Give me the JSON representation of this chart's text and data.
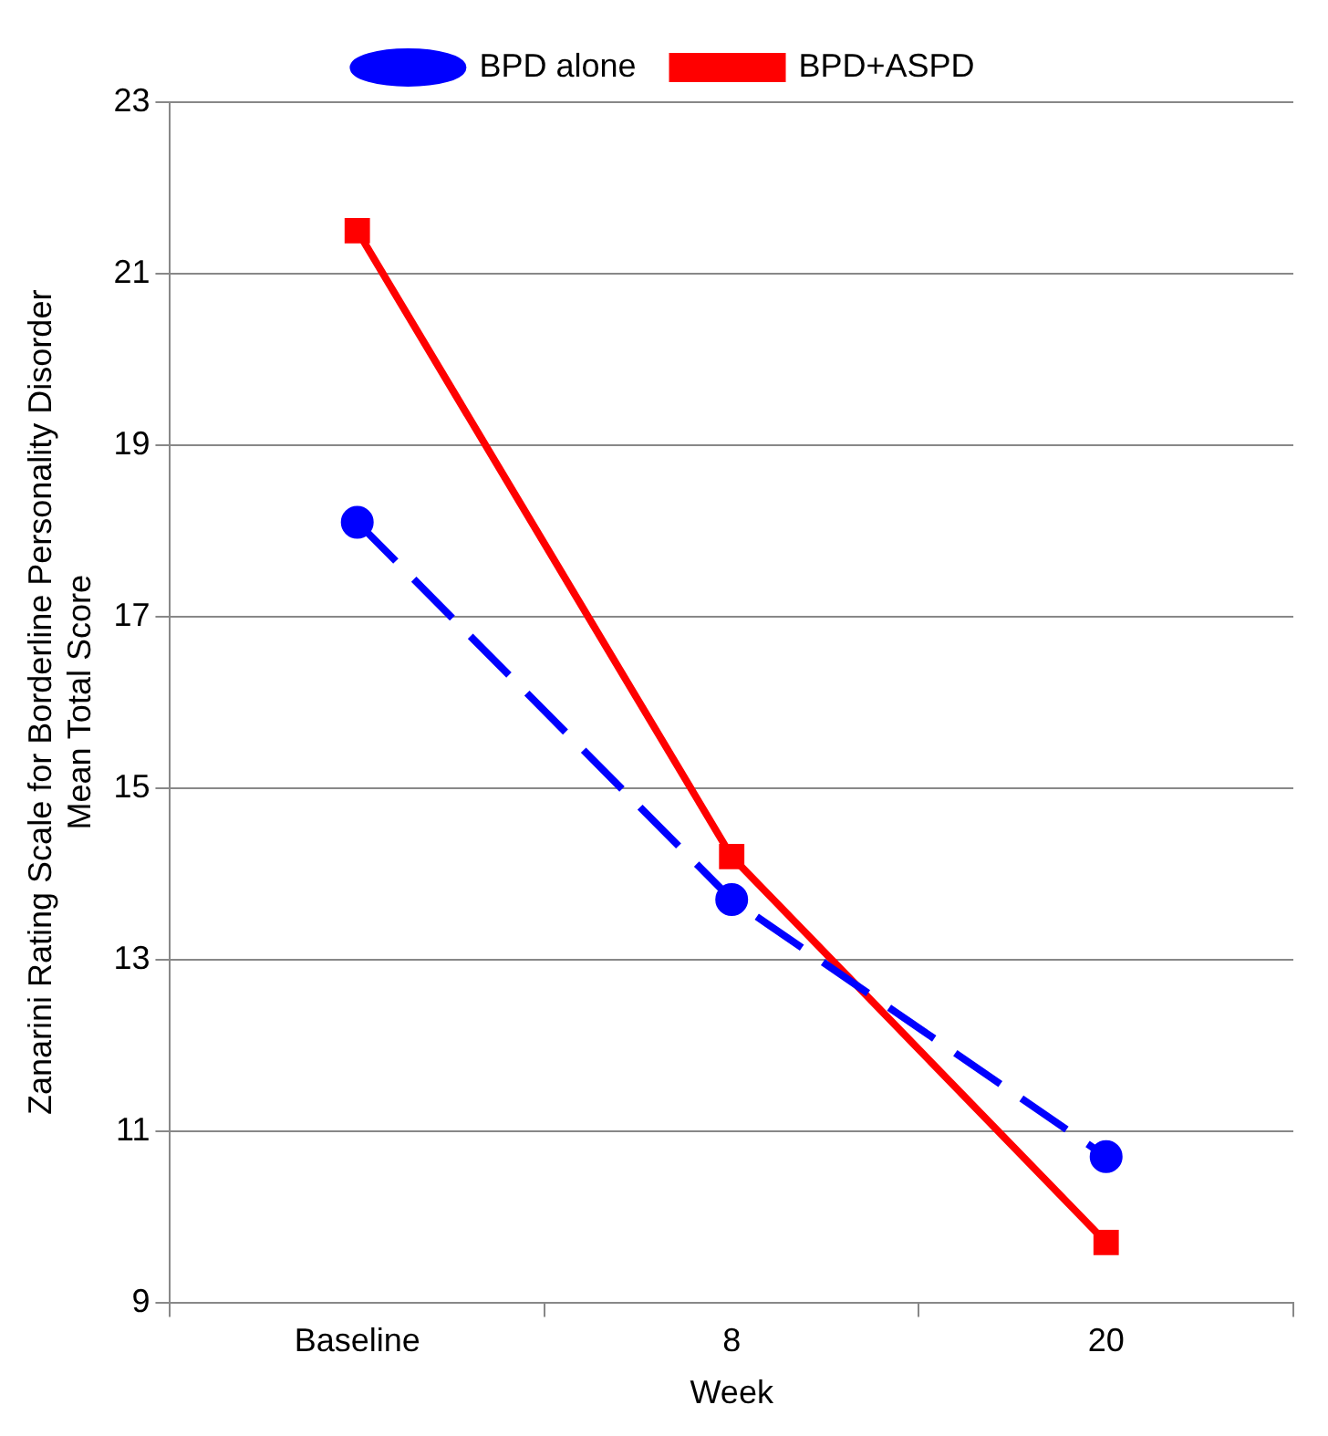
{
  "chart_data": {
    "type": "line",
    "xlabel": "Week",
    "ylabel": "Zanarini Rating Scale for Borderline Personality Disorder\nMean Total Score",
    "categories": [
      "Baseline",
      "8",
      "20"
    ],
    "series": [
      {
        "name": "BPD alone",
        "color": "#0000ff",
        "values": [
          18.1,
          13.7,
          10.7
        ],
        "marker": "circle",
        "line_style": "dashed"
      },
      {
        "name": "BPD+ASPD",
        "color": "#ff0000",
        "values": [
          21.5,
          14.2,
          9.7
        ],
        "marker": "square",
        "line_style": "solid"
      }
    ],
    "ylim": [
      9,
      23
    ],
    "yticks": [
      9,
      11,
      13,
      15,
      17,
      19,
      21,
      23
    ],
    "grid": "y",
    "legend": "top"
  }
}
